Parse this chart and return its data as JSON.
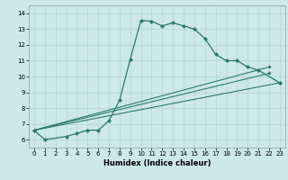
{
  "xlabel": "Humidex (Indice chaleur)",
  "bg_color": "#cce8e8",
  "grid_color": "#b8d8d8",
  "line_color": "#2a7a6a",
  "xlim": [
    -0.5,
    23.5
  ],
  "ylim": [
    5.5,
    14.5
  ],
  "xticks": [
    0,
    1,
    2,
    3,
    4,
    5,
    6,
    7,
    8,
    9,
    10,
    11,
    12,
    13,
    14,
    15,
    16,
    17,
    18,
    19,
    20,
    21,
    22,
    23
  ],
  "yticks": [
    6,
    7,
    8,
    9,
    10,
    11,
    12,
    13,
    14
  ],
  "main_series": {
    "x": [
      0,
      1,
      3,
      4,
      5,
      6,
      7,
      8,
      9,
      10,
      11,
      12,
      13,
      14,
      15,
      16,
      17,
      18,
      19,
      20,
      21,
      23
    ],
    "y": [
      6.6,
      6.0,
      6.2,
      6.4,
      6.6,
      6.6,
      7.2,
      8.5,
      11.1,
      13.55,
      13.5,
      13.2,
      13.4,
      13.2,
      13.0,
      12.4,
      11.4,
      11.0,
      11.0,
      10.6,
      10.4,
      9.6
    ]
  },
  "straight_lines": [
    {
      "x": [
        0,
        22
      ],
      "y": [
        6.6,
        10.6
      ]
    },
    {
      "x": [
        0,
        22
      ],
      "y": [
        6.6,
        10.2
      ]
    },
    {
      "x": [
        0,
        23
      ],
      "y": [
        6.6,
        9.6
      ]
    }
  ]
}
